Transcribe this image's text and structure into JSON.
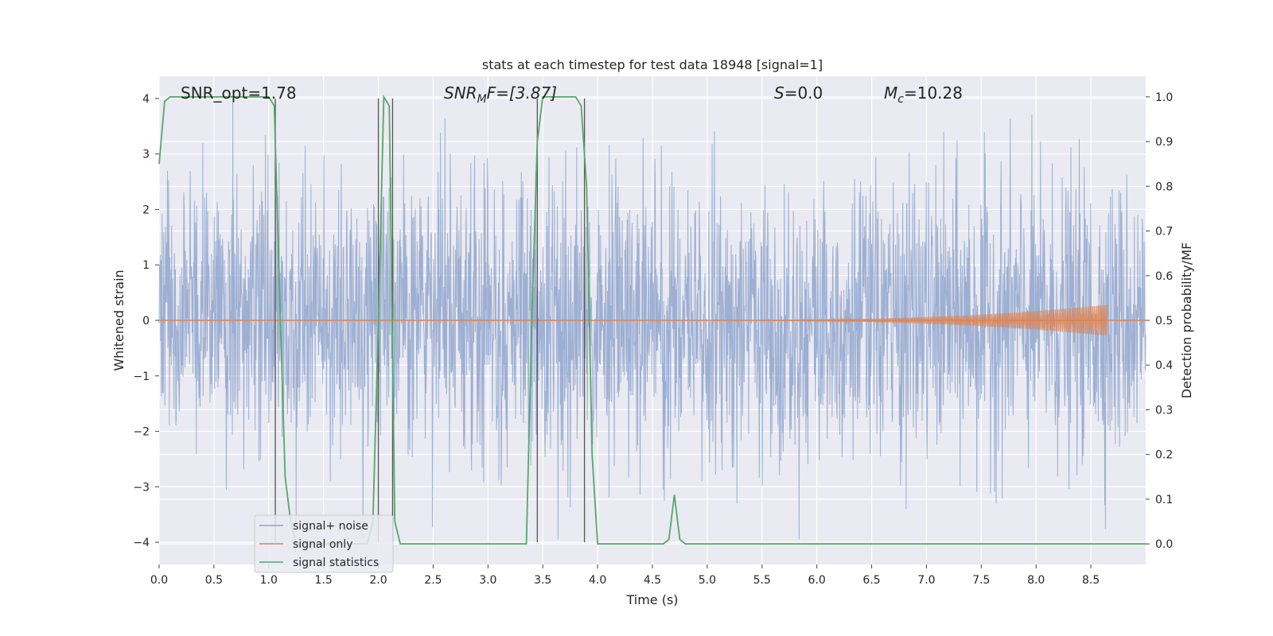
{
  "chart_data": {
    "type": "line",
    "title": "stats at each timestep for test data 18948 [signal=1]",
    "xlabel": "Time (s)",
    "ylabel": "Whitened strain",
    "y2label": "Detection probability/MF",
    "xlim": [
      0,
      9.0
    ],
    "ylim": [
      -4.4,
      4.4
    ],
    "y2lim": [
      -0.046,
      1.046
    ],
    "x_ticks": [
      "0.0",
      "0.5",
      "1.0",
      "1.5",
      "2.0",
      "2.5",
      "3.0",
      "3.5",
      "4.0",
      "4.5",
      "5.0",
      "5.5",
      "6.0",
      "6.5",
      "7.0",
      "7.5",
      "8.0",
      "8.5"
    ],
    "y_ticks": [
      "−4",
      "−3",
      "−2",
      "−1",
      "0",
      "1",
      "2",
      "3",
      "4"
    ],
    "y2_ticks": [
      "0.0",
      "0.1",
      "0.2",
      "0.3",
      "0.4",
      "0.5",
      "0.6",
      "0.7",
      "0.8",
      "0.9",
      "1.0"
    ],
    "grid": true,
    "legend_position": "lower-left",
    "annotations": {
      "snr_opt": "SNR_opt=1.78",
      "snr_mf_base": "SNR",
      "snr_mf_sub": "M",
      "snr_mf_tail": "F=[3.87]",
      "s_base": "S",
      "s_tail": "=0.0",
      "mc_base": "M",
      "mc_sub": "c",
      "mc_tail": "=10.28"
    },
    "series": [
      {
        "name": "signal+ noise",
        "color": "#8fa4cc",
        "description_values": "whitened strain noise, amplitude roughly within -4 to 4, dense samples across 0 to 9 s"
      },
      {
        "name": "signal only",
        "color": "#dd8452",
        "chirp_start": 4.5,
        "chirp_end": 8.65,
        "chirp_peak_amplitude": 0.28
      },
      {
        "name": "signal statistics",
        "color": "#55a868",
        "x": [
          0.0,
          0.05,
          0.1,
          0.2,
          0.5,
          0.95,
          1.0,
          1.05,
          1.1,
          1.15,
          1.2,
          1.25,
          1.9,
          1.95,
          2.0,
          2.05,
          2.1,
          2.15,
          2.2,
          2.25,
          3.0,
          3.35,
          3.4,
          3.45,
          3.5,
          3.55,
          3.8,
          3.85,
          3.9,
          3.95,
          4.0,
          4.6,
          4.65,
          4.7,
          4.75,
          4.8,
          4.85,
          5.5,
          8.2,
          9.0
        ],
        "values": [
          0.85,
          0.99,
          1.0,
          1.0,
          1.0,
          1.0,
          1.0,
          0.98,
          0.55,
          0.15,
          0.05,
          0.0,
          0.0,
          0.05,
          0.5,
          1.0,
          0.98,
          0.05,
          0.0,
          0.0,
          0.0,
          0.0,
          0.5,
          0.9,
          1.0,
          1.0,
          1.0,
          0.98,
          0.8,
          0.2,
          0.0,
          0.0,
          0.01,
          0.11,
          0.01,
          0.0,
          0.0,
          0.0,
          0.0,
          0.0
        ]
      }
    ],
    "vertical_markers": [
      1.06,
      2.0,
      2.13,
      3.45,
      3.88
    ]
  }
}
